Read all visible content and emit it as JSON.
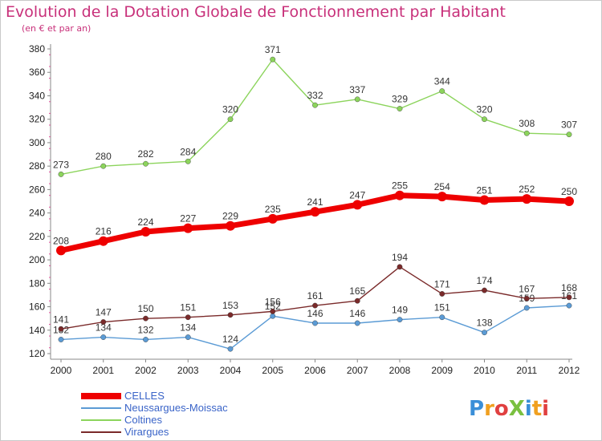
{
  "title": "Evolution de la Dotation Globale de Fonctionnement par Habitant",
  "subtitle": "(en € et par an)",
  "logo_text": "ProXiti",
  "chart_data": {
    "type": "line",
    "categories": [
      "2000",
      "2001",
      "2002",
      "2003",
      "2004",
      "2005",
      "2006",
      "2007",
      "2008",
      "2009",
      "2010",
      "2011",
      "2012"
    ],
    "y_ticks": [
      "120",
      "140",
      "160",
      "180",
      "200",
      "220",
      "240",
      "260",
      "280",
      "300",
      "320",
      "340",
      "360",
      "380"
    ],
    "ylim": [
      120,
      380
    ],
    "grid": false,
    "legend_position": "bottom-left",
    "series": [
      {
        "name": "CELLES",
        "color": "#ee0000",
        "values": [
          208,
          216,
          224,
          227,
          229,
          235,
          241,
          247,
          255,
          254,
          251,
          252,
          250
        ],
        "labels": [
          "208",
          "216",
          "224",
          "227",
          "229",
          "235",
          "241",
          "247",
          "255",
          "254",
          "251",
          "252",
          "250"
        ]
      },
      {
        "name": "Neussargues-Moissac",
        "color": "#5b9bd5",
        "values": [
          132,
          134,
          132,
          134,
          124,
          152,
          146,
          146,
          149,
          151,
          138,
          159,
          161
        ],
        "labels": [
          "132",
          "134",
          "132",
          "134",
          "124",
          "152",
          "146",
          "146",
          "149",
          "151",
          "138",
          "159",
          "161"
        ]
      },
      {
        "name": "Coltines",
        "color": "#8cd45c",
        "values": [
          273,
          280,
          282,
          284,
          320,
          371,
          332,
          337,
          329,
          344,
          320,
          308,
          307
        ],
        "labels": [
          "273",
          "280",
          "282",
          "284",
          "320",
          "371",
          "332",
          "337",
          "329",
          "344",
          "320",
          "308",
          "307"
        ]
      },
      {
        "name": "Virargues",
        "color": "#7a2a2a",
        "values": [
          141,
          147,
          150,
          151,
          153,
          156,
          161,
          165,
          194,
          171,
          174,
          167,
          168
        ],
        "labels": [
          "141",
          "147",
          "150",
          "151",
          "153",
          "156",
          "161",
          "165",
          "194",
          "171",
          "174",
          "167",
          "168"
        ]
      }
    ]
  }
}
